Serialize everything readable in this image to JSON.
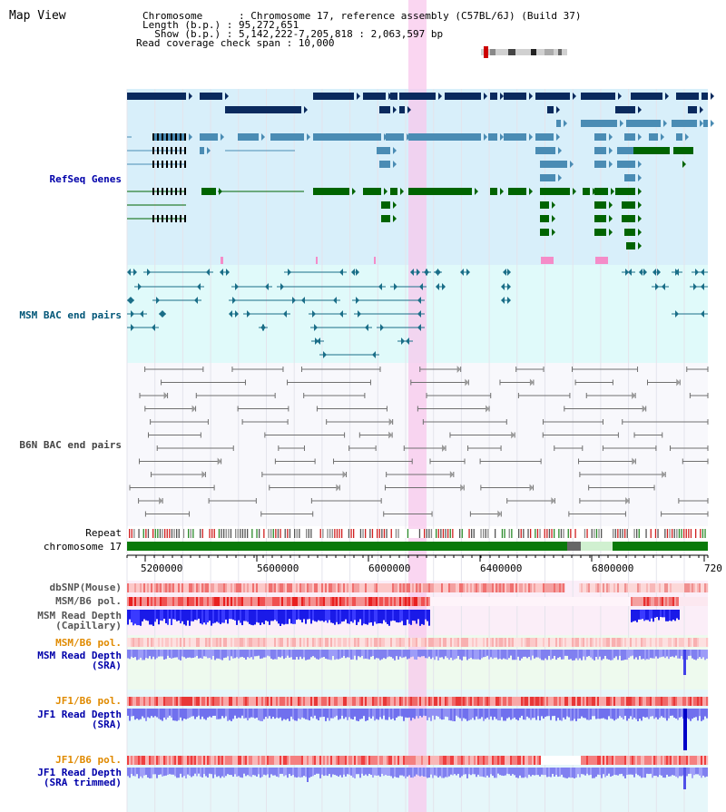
{
  "view_title": "Map View",
  "info": {
    "chromosome": "Chromosome      : Chromosome 17, reference assembly (C57BL/6J) (Build 37)",
    "length": "Length (b.p.) : 95,272,651",
    "show": "  Show (b.p.) : 5,142,222-7,205,818 : 2,063,597 bp",
    "coverage": "Read coverage check span : 10,000"
  },
  "tracks": {
    "refseq": "RefSeq Genes",
    "msm_bac": "MSM BAC end pairs",
    "b6n_bac": "B6N BAC end pairs",
    "repeat": "Repeat",
    "chromosome": "chromosome 17",
    "dbsnp": "dbSNP(Mouse)",
    "msm_pol": "MSM/B6 pol.",
    "msm_depth_cap": "MSM Read Depth\n(Capillary)",
    "msm_pol2": "MSM/B6 pol.",
    "msm_depth_sra": "MSM Read Depth\n(SRA)",
    "jf1_pol": "JF1/B6 pol.",
    "jf1_depth_sra": "JF1 Read Depth\n(SRA)",
    "jf1_pol2": "JF1/B6 pol.",
    "jf1_depth_trim": "JF1 Read Depth\n(SRA trimmed)"
  },
  "axis": {
    "ticks": [
      "5200000",
      "5600000",
      "6000000",
      "6400000",
      "6800000",
      "720"
    ]
  },
  "colors": {
    "refseq_bg": "#d8effa",
    "bac_bg": "#e0fafa",
    "b6n_bg": "#f8f8fc",
    "lower_bg": "#e6f7fa",
    "green_bg": "#eefaee",
    "highlight": "#f8c8ec",
    "dark_navy": "#0a2a5e",
    "steel": "#4a8cb4",
    "green": "#006400",
    "teal": "#1a6e88",
    "gray": "#707070",
    "red": "#e8281e",
    "blue": "#1a1ae8",
    "label_blue": "#0000aa",
    "label_teal": "#005577",
    "label_orange": "#e08a00"
  }
}
